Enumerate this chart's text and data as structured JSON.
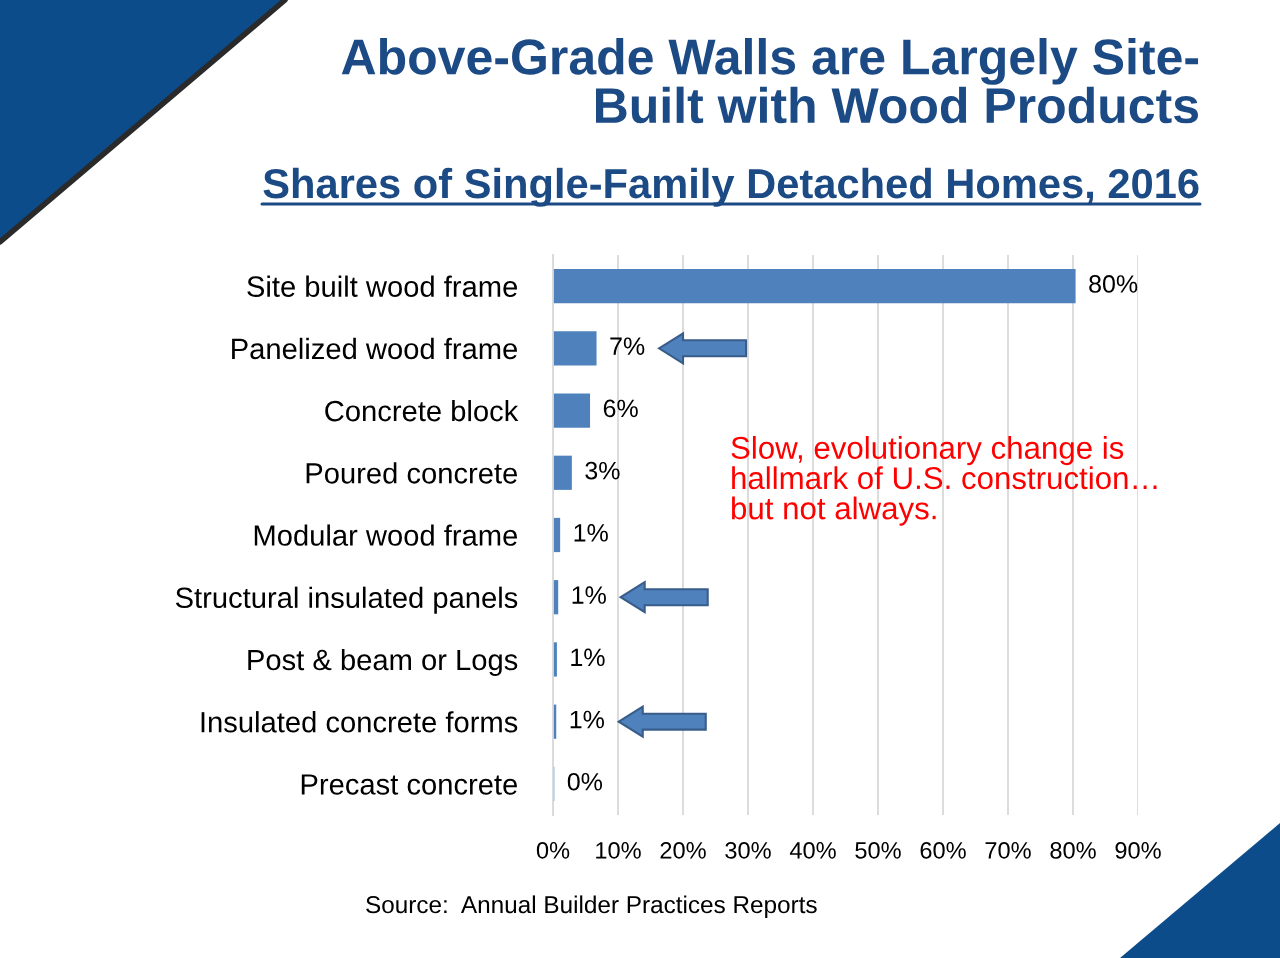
{
  "chart_data": {
    "type": "bar",
    "orientation": "horizontal",
    "title": "Above-Grade Walls are Largely Site-Built with Wood Products",
    "subtitle": "Shares of Single-Family Detached Homes, 2016",
    "categories": [
      "Site built wood frame",
      "Panelized wood frame",
      "Concrete block",
      "Poured concrete",
      "Modular wood frame",
      "Structural insulated panels",
      "Post & beam or Logs",
      "Insulated concrete forms",
      "Precast concrete"
    ],
    "values": [
      80.4,
      6.7,
      5.7,
      2.9,
      1.1,
      0.8,
      0.6,
      0.5,
      0.2
    ],
    "value_labels": [
      "80%",
      "7%",
      "6%",
      "3%",
      "1%",
      "1%",
      "1%",
      "1%",
      "0%"
    ],
    "color": "#4f81bd",
    "xlim": [
      0,
      90
    ],
    "xticks": [
      {
        "value": 0,
        "label": "0%"
      },
      {
        "value": 10,
        "label": "10%"
      },
      {
        "value": 20,
        "label": "20%"
      },
      {
        "value": 30,
        "label": "30%"
      },
      {
        "value": 40,
        "label": "40%"
      },
      {
        "value": 50,
        "label": "50%"
      },
      {
        "value": 60,
        "label": "60%"
      },
      {
        "value": 70,
        "label": "70%"
      },
      {
        "value": 80,
        "label": "80%"
      },
      {
        "value": 90,
        "label": "90%"
      }
    ],
    "grid": "x",
    "annotations": [
      "Slow, evolutionary change is hallmark of U.S. construction… but not always.",
      "Source:  Annual Builder Practices Reports"
    ]
  }
}
